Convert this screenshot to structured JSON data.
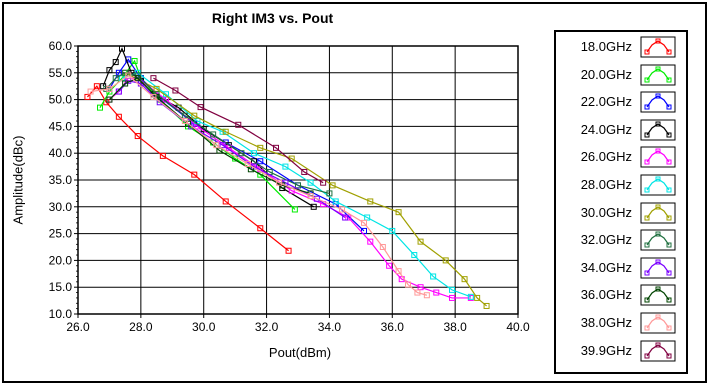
{
  "chart_data": {
    "type": "line",
    "title": "Right IM3 vs. Pout",
    "xlabel": "Pout(dBm)",
    "ylabel": "Amplitude(dBc)",
    "xlim": [
      26.0,
      40.0
    ],
    "ylim": [
      10.0,
      60.0
    ],
    "xticks": [
      "26.0",
      "28.0",
      "30.0",
      "32.0",
      "34.0",
      "36.0",
      "38.0",
      "40.0"
    ],
    "yticks": [
      "60.0",
      "55.0",
      "50.0",
      "45.0",
      "40.0",
      "35.0",
      "30.0",
      "25.0",
      "20.0",
      "15.0",
      "10.0"
    ],
    "grid": true,
    "legend_position": "right",
    "series": [
      {
        "name": "18.0GHz",
        "color": "#ff0000",
        "points": [
          [
            26.3,
            50.5
          ],
          [
            26.6,
            52.5
          ],
          [
            26.9,
            49.5
          ],
          [
            27.3,
            46.8
          ],
          [
            27.9,
            43.2
          ],
          [
            28.7,
            39.5
          ],
          [
            29.7,
            36.0
          ],
          [
            30.7,
            31.0
          ],
          [
            31.8,
            26.0
          ],
          [
            32.7,
            21.8
          ]
        ]
      },
      {
        "name": "20.0GHz",
        "color": "#00ee00",
        "points": [
          [
            26.7,
            48.5
          ],
          [
            27.0,
            51.5
          ],
          [
            27.4,
            54.0
          ],
          [
            27.8,
            57.2
          ],
          [
            28.0,
            54.0
          ],
          [
            28.6,
            50.0
          ],
          [
            29.5,
            45.0
          ],
          [
            30.3,
            42.0
          ],
          [
            31.0,
            39.0
          ],
          [
            31.8,
            36.0
          ],
          [
            32.9,
            29.5
          ]
        ]
      },
      {
        "name": "22.0GHz",
        "color": "#0000ff",
        "points": [
          [
            27.0,
            52.0
          ],
          [
            27.3,
            55.0
          ],
          [
            27.6,
            57.5
          ],
          [
            28.0,
            54.0
          ],
          [
            28.7,
            50.0
          ],
          [
            29.7,
            45.5
          ],
          [
            30.7,
            42.0
          ],
          [
            31.8,
            38.5
          ],
          [
            33.0,
            34.0
          ],
          [
            34.2,
            30.5
          ],
          [
            35.1,
            25.5
          ]
        ]
      },
      {
        "name": "24.0GHz",
        "color": "#000000",
        "points": [
          [
            26.8,
            52.5
          ],
          [
            27.0,
            55.5
          ],
          [
            27.2,
            57.0
          ],
          [
            27.4,
            59.5
          ],
          [
            27.7,
            55.0
          ],
          [
            28.0,
            53.5
          ],
          [
            28.4,
            51.0
          ],
          [
            29.2,
            48.5
          ],
          [
            30.0,
            44.5
          ],
          [
            30.8,
            41.5
          ],
          [
            31.6,
            38.5
          ],
          [
            32.5,
            33.5
          ],
          [
            33.5,
            30.0
          ]
        ]
      },
      {
        "name": "26.0GHz",
        "color": "#ff00ff",
        "points": [
          [
            27.0,
            50.0
          ],
          [
            27.3,
            51.5
          ],
          [
            27.6,
            54.0
          ],
          [
            27.9,
            54.0
          ],
          [
            28.8,
            50.0
          ],
          [
            29.8,
            45.0
          ],
          [
            30.8,
            41.0
          ],
          [
            31.8,
            37.0
          ],
          [
            32.8,
            33.0
          ],
          [
            33.8,
            30.5
          ],
          [
            34.6,
            28.0
          ],
          [
            35.3,
            23.5
          ],
          [
            35.9,
            19.0
          ],
          [
            36.3,
            16.5
          ],
          [
            36.9,
            15.0
          ],
          [
            37.4,
            14.0
          ],
          [
            37.9,
            13.0
          ],
          [
            38.5,
            13.0
          ]
        ]
      },
      {
        "name": "28.0GHz",
        "color": "#00e5e5",
        "points": [
          [
            27.4,
            54.0
          ],
          [
            27.9,
            55.0
          ],
          [
            28.8,
            51.0
          ],
          [
            29.8,
            46.0
          ],
          [
            30.6,
            44.0
          ],
          [
            31.6,
            40.0
          ],
          [
            32.6,
            37.5
          ],
          [
            33.4,
            34.5
          ],
          [
            34.2,
            31.0
          ],
          [
            35.2,
            28.0
          ],
          [
            36.0,
            25.5
          ],
          [
            36.7,
            21.0
          ],
          [
            37.3,
            17.0
          ],
          [
            37.9,
            14.5
          ],
          [
            38.5,
            13.2
          ]
        ]
      },
      {
        "name": "30.0GHz",
        "color": "#a0a000",
        "points": [
          [
            27.5,
            55.0
          ],
          [
            28.5,
            52.0
          ],
          [
            29.7,
            47.0
          ],
          [
            30.7,
            44.0
          ],
          [
            31.8,
            41.0
          ],
          [
            32.8,
            39.0
          ],
          [
            34.1,
            34.0
          ],
          [
            35.3,
            31.0
          ],
          [
            36.2,
            29.0
          ],
          [
            36.9,
            23.5
          ],
          [
            37.7,
            20.0
          ],
          [
            38.3,
            16.5
          ],
          [
            38.7,
            13.0
          ],
          [
            39.0,
            11.5
          ]
        ]
      },
      {
        "name": "32.0GHz",
        "color": "#207040",
        "points": [
          [
            26.9,
            52.0
          ],
          [
            27.2,
            54.0
          ],
          [
            27.5,
            55.0
          ],
          [
            27.9,
            54.5
          ],
          [
            28.5,
            51.0
          ],
          [
            29.4,
            47.0
          ],
          [
            30.3,
            43.5
          ],
          [
            31.2,
            40.0
          ],
          [
            32.1,
            36.5
          ],
          [
            33.0,
            34.0
          ],
          [
            34.0,
            32.5
          ]
        ]
      },
      {
        "name": "34.0GHz",
        "color": "#7a00ff",
        "points": [
          [
            27.3,
            51.5
          ],
          [
            27.6,
            53.5
          ],
          [
            28.0,
            53.0
          ],
          [
            28.6,
            49.5
          ],
          [
            29.6,
            45.0
          ],
          [
            30.6,
            41.5
          ],
          [
            31.6,
            37.5
          ],
          [
            32.6,
            34.5
          ],
          [
            33.6,
            31.5
          ],
          [
            34.5,
            28.0
          ]
        ]
      },
      {
        "name": "36.0GHz",
        "color": "#004400",
        "points": [
          [
            27.0,
            50.0
          ],
          [
            27.5,
            53.0
          ],
          [
            27.9,
            54.0
          ],
          [
            28.5,
            50.5
          ],
          [
            29.5,
            45.5
          ],
          [
            30.5,
            40.5
          ],
          [
            31.5,
            37.0
          ],
          [
            32.5,
            34.0
          ],
          [
            33.4,
            32.5
          ]
        ]
      },
      {
        "name": "38.0GHz",
        "color": "#ff9999",
        "points": [
          [
            26.4,
            51.5
          ],
          [
            27.0,
            52.0
          ],
          [
            27.6,
            54.5
          ],
          [
            28.4,
            50.5
          ],
          [
            29.4,
            46.0
          ],
          [
            30.4,
            41.5
          ],
          [
            31.4,
            38.0
          ],
          [
            32.4,
            34.5
          ],
          [
            33.4,
            32.0
          ],
          [
            34.4,
            29.5
          ],
          [
            35.1,
            27.0
          ],
          [
            35.7,
            22.5
          ],
          [
            36.2,
            18.0
          ],
          [
            36.5,
            15.5
          ],
          [
            36.8,
            14.0
          ],
          [
            37.1,
            13.5
          ]
        ]
      },
      {
        "name": "39.9GHz",
        "color": "#800040",
        "points": [
          [
            28.4,
            54.0
          ],
          [
            29.1,
            51.7
          ],
          [
            29.9,
            48.6
          ],
          [
            31.1,
            45.3
          ],
          [
            32.3,
            41.0
          ],
          [
            33.2,
            36.5
          ],
          [
            33.8,
            34.5
          ]
        ]
      }
    ]
  }
}
